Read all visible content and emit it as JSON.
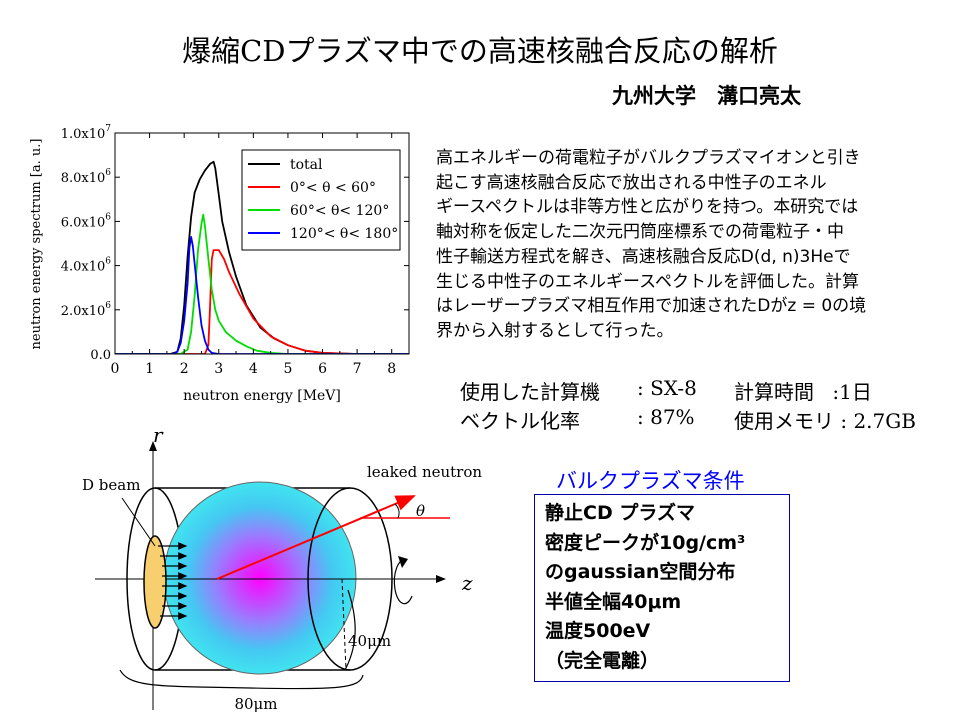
{
  "title": "爆縮CDプラズマ中での高速核融合反応の解析",
  "author": "九州大学　溝口亮太",
  "description": [
    "高エネルギーの荷電粒子がバルクプラズマイオンと引き",
    "起こす高速核融合反応で放出される中性子のエネル",
    "ギースペクトルは非等方性と広がりを持つ。本研究では",
    "軸対称を仮定した二次元円筒座標系での荷電粒子・中",
    "性子輸送方程式を解き、高速核融合反応D(d, n)3Heで",
    "生じる中性子のエネルギースペクトルを評価した。計算",
    "はレーザープラズマ相互作用で加速されたDがz = 0の境",
    "界から入射するとして行った。"
  ],
  "specs": {
    "computer_label": "使用した計算機",
    "computer_value": ": SX-8",
    "time_label": "計算時間",
    "time_value": ":1日",
    "vector_label": "ベクトル化率",
    "vector_value": ": 87%",
    "memory_label": "使用メモリ",
    "memory_value": ": 2.7GB"
  },
  "conditions": {
    "title": "バルクプラズマ条件",
    "lines": [
      "静止CD プラズマ",
      "密度ピークが10g/cm³",
      "のgaussian空間分布",
      "半値全幅40μm",
      "温度500eV",
      "（完全電離）"
    ]
  },
  "diagram": {
    "axis_r": "r",
    "axis_z": "z",
    "beam_label": "D beam",
    "leaked_label": "leaked neutron",
    "theta_label": "θ",
    "radius_label": "40μm",
    "length_label": "80μm"
  },
  "chart_data": {
    "type": "line",
    "xlabel": "neutron energy [MeV]",
    "ylabel": "neutron energy spectrum [a. u.]",
    "xlim": [
      0,
      8.5
    ],
    "ylim": [
      0,
      10000000
    ],
    "xticks": [
      "0",
      "1",
      "2",
      "3",
      "4",
      "5",
      "6",
      "7",
      "8"
    ],
    "yticks": [
      {
        "value": 0,
        "mant": "0.0",
        "exp": ""
      },
      {
        "value": 2000000,
        "mant": "2.0x10",
        "exp": "6"
      },
      {
        "value": 4000000,
        "mant": "4.0x10",
        "exp": "6"
      },
      {
        "value": 6000000,
        "mant": "6.0x10",
        "exp": "6"
      },
      {
        "value": 8000000,
        "mant": "8.0x10",
        "exp": "6"
      },
      {
        "value": 10000000,
        "mant": "1.0x10",
        "exp": "7"
      }
    ],
    "legend": "top-right",
    "series": [
      {
        "name": "total",
        "color": "#000000",
        "x": [
          0,
          1.6,
          1.8,
          1.9,
          2.0,
          2.1,
          2.2,
          2.3,
          2.45,
          2.6,
          2.75,
          2.85,
          2.9,
          3.0,
          3.1,
          3.3,
          3.5,
          3.8,
          4.2,
          4.6,
          5.0,
          5.5,
          6.0,
          7.0,
          8.5
        ],
        "y": [
          0,
          0,
          100000,
          700000,
          2200000,
          4400000,
          6200000,
          7300000,
          7900000,
          8300000,
          8600000,
          8700000,
          8400000,
          7200000,
          6000000,
          4600000,
          3500000,
          2200000,
          1200000,
          700000,
          400000,
          150000,
          50000,
          0,
          0
        ]
      },
      {
        "name": "0°< θ < 60°",
        "color": "#ff0000",
        "x": [
          0,
          2.6,
          2.7,
          2.75,
          2.8,
          2.85,
          3.0,
          3.15,
          3.3,
          3.6,
          4.0,
          4.5,
          5.0,
          5.5,
          6.0,
          7.0,
          8.5
        ],
        "y": [
          0,
          0,
          400000,
          2200000,
          4300000,
          4700000,
          4700000,
          4300000,
          3700000,
          2700000,
          1600000,
          800000,
          400000,
          150000,
          50000,
          0,
          0
        ]
      },
      {
        "name": "60°< θ< 120°",
        "color": "#00dd00",
        "x": [
          0,
          1.9,
          2.1,
          2.2,
          2.3,
          2.4,
          2.5,
          2.55,
          2.6,
          2.7,
          2.8,
          2.9,
          3.0,
          3.2,
          3.5,
          3.8,
          4.1,
          4.5,
          5.0,
          8.5
        ],
        "y": [
          0,
          0,
          200000,
          1000000,
          2600000,
          4700000,
          5900000,
          6300000,
          5800000,
          4300000,
          2900000,
          2000000,
          1500000,
          1000000,
          600000,
          350000,
          150000,
          50000,
          0,
          0
        ]
      },
      {
        "name": "120°< θ< 180°",
        "color": "#0000ff",
        "x": [
          0,
          1.7,
          1.8,
          1.9,
          2.0,
          2.1,
          2.15,
          2.2,
          2.25,
          2.3,
          2.4,
          2.5,
          2.6,
          2.7,
          2.8,
          3.0,
          8.5
        ],
        "y": [
          0,
          0,
          100000,
          500000,
          1500000,
          3200000,
          4800000,
          5300000,
          4900000,
          4100000,
          2600000,
          1300000,
          600000,
          200000,
          50000,
          0,
          0
        ]
      }
    ]
  }
}
